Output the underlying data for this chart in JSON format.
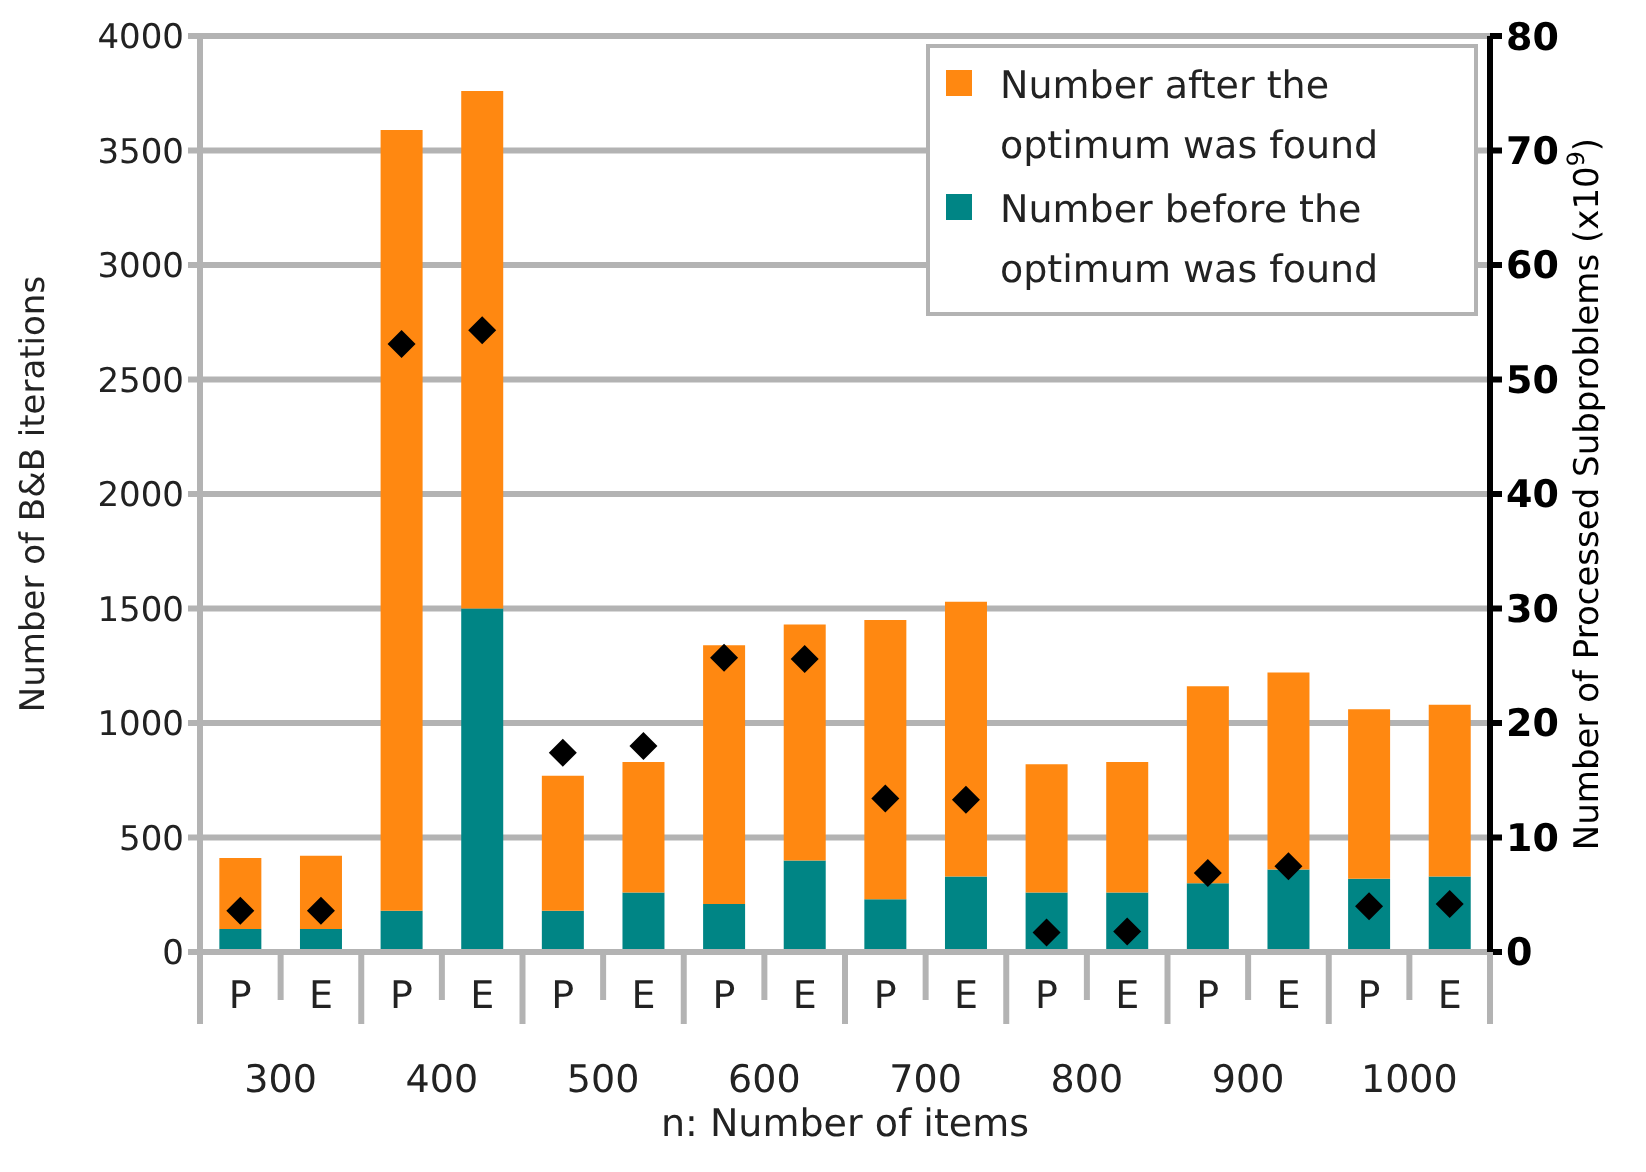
{
  "chart_data": {
    "type": "bar",
    "stacked": true,
    "categories": [
      "P",
      "E",
      "P",
      "E",
      "P",
      "E",
      "P",
      "E",
      "P",
      "E",
      "P",
      "E",
      "P",
      "E",
      "P",
      "E"
    ],
    "xlabel": "n: Number of items",
    "ylabel": "Number of B&B iterations",
    "y2label": "Number of Processed Subproblems (x10$^{9}$)",
    "annotations": [
      "300",
      "400",
      "500",
      "600",
      "700",
      "800",
      "900",
      "1000"
    ],
    "series": [
      {
        "name": "Number before the optimum was found",
        "color": "#008585",
        "values": [
          100,
          100,
          180,
          1500,
          180,
          260,
          210,
          400,
          230,
          330,
          260,
          260,
          300,
          360,
          320,
          330
        ]
      },
      {
        "name": "Number after the optimum was found",
        "color": "#ff8811",
        "values": [
          310,
          320,
          3410,
          2260,
          590,
          570,
          1130,
          1030,
          1220,
          1200,
          560,
          570,
          860,
          860,
          740,
          750
        ]
      },
      {
        "type": "scatter",
        "axis": "y2",
        "marker": "diamond",
        "color": "#000000",
        "values": [
          3.6,
          3.6,
          53.1,
          54.3,
          17.4,
          18.0,
          25.7,
          25.6,
          13.4,
          13.3,
          1.7,
          1.8,
          6.9,
          7.5,
          4.0,
          4.2
        ]
      }
    ],
    "ylim": [
      0,
      4000
    ],
    "yticks": [
      0,
      500,
      1000,
      1500,
      2000,
      2500,
      3000,
      3500,
      4000
    ],
    "y2lim": [
      0,
      80
    ],
    "y2ticks": [
      0,
      10,
      20,
      30,
      40,
      50,
      60,
      70,
      80
    ],
    "grid": "y",
    "legend": "top right"
  }
}
